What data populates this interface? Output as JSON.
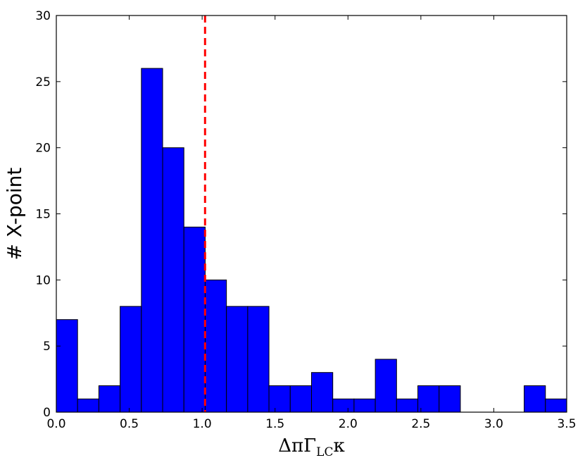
{
  "chart_data": {
    "type": "bar",
    "histogram": true,
    "bin_width": 0.1458,
    "bin_starts": [
      0.0,
      0.1458,
      0.2917,
      0.4375,
      0.5833,
      0.7292,
      0.875,
      1.0208,
      1.1667,
      1.3125,
      1.4583,
      1.6042,
      1.75,
      1.8958,
      2.0417,
      2.1875,
      2.3333,
      2.4792,
      2.625,
      2.7708,
      2.9167,
      3.0625,
      3.2083,
      3.3542
    ],
    "values": [
      7,
      1,
      2,
      8,
      26,
      20,
      14,
      10,
      8,
      8,
      2,
      2,
      3,
      1,
      1,
      4,
      1,
      2,
      2,
      0,
      0,
      0,
      2,
      1
    ],
    "bar_color": "#0000ff",
    "xlim": [
      0.0,
      3.5
    ],
    "ylim": [
      0,
      30
    ],
    "x_ticks": [
      "0.0",
      "0.5",
      "1.0",
      "1.5",
      "2.0",
      "2.5",
      "3.0",
      "3.5"
    ],
    "y_ticks": [
      "0",
      "5",
      "10",
      "15",
      "20",
      "25",
      "30"
    ],
    "xlabel_main": "ΔπΓ",
    "xlabel_sub": "LC",
    "xlabel_tail": "κ",
    "ylabel": "# X-point",
    "vline": {
      "x": 1.02,
      "color": "#ff0000",
      "style": "dashed"
    },
    "grid": false
  }
}
